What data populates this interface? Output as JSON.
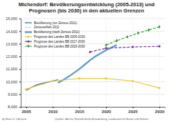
{
  "chart_data": {
    "type": "line",
    "title": "Michendorf: Bevölkerungsentwicklung (2005-2013) und Prognosen (bis 2030) in den aktuellen Grenzen",
    "annotations": [
      "by Hans G. Oberlack",
      "Quellen: Amt für Statistik Berlin-Brandenburg, Landesamt für Bauen und Verkehr"
    ],
    "xlim": [
      2004,
      2031
    ],
    "xticks": [
      2005,
      2010,
      2015,
      2020,
      2025,
      2030
    ],
    "ylim": [
      8000,
      15000
    ],
    "yticks": [
      {
        "value": 8000,
        "label": "8,000"
      },
      {
        "value": 9000,
        "label": "9,000"
      },
      {
        "value": 10000,
        "label": "10,000"
      },
      {
        "value": 11000,
        "label": "11,000"
      },
      {
        "value": 12000,
        "label": "12,000"
      },
      {
        "value": 13000,
        "label": "13,000"
      },
      {
        "value": 14000,
        "label": "14,000"
      },
      {
        "value": 15000,
        "label": "15,000"
      }
    ],
    "grid": true,
    "legend": "upper left",
    "series": [
      {
        "name": "Bevölkerung (vor Zensus 2011)",
        "color": "#2a5aa8",
        "marker": "none",
        "line_style": "solid",
        "x": [
          2005,
          2006,
          2007,
          2008,
          2009,
          2010,
          2011
        ],
        "values": [
          9300,
          9550,
          9750,
          9850,
          9950,
          10050,
          10150
        ]
      },
      {
        "name": "Zensuseffekt 2011",
        "color": "#a6a6a6",
        "marker": "none",
        "line_style": "dotted",
        "x": [
          2011,
          2011
        ],
        "values": [
          10150,
          9900
        ]
      },
      {
        "name": "Bevölkerung (nach Zensus 2011)",
        "color": "#5b9bd5",
        "marker": "none",
        "line_style": "solid",
        "x": [
          2011,
          2012,
          2013,
          2014,
          2015,
          2016,
          2017,
          2018,
          2019,
          2020,
          2021,
          2022
        ],
        "values": [
          9900,
          10150,
          10400,
          10700,
          11000,
          11350,
          11700,
          12000,
          12250,
          12500,
          12700,
          12900
        ]
      },
      {
        "name": "Prognose des Landes BB 2005-2030",
        "color": "#e8c830",
        "marker": "circle",
        "line_style": "solid",
        "x": [
          2005,
          2010,
          2015,
          2020,
          2025,
          2030
        ],
        "values": [
          9400,
          10050,
          10250,
          10250,
          10050,
          9500
        ]
      },
      {
        "name": "Prognose des Landes BB 2017-2030",
        "color": "#7030a0",
        "marker": "square",
        "line_style": "dashed",
        "x": [
          2017,
          2020,
          2025,
          2030
        ],
        "values": [
          12350,
          12650,
          12750,
          12800
        ]
      },
      {
        "name": "Prognose des Landes BB 2020-2030",
        "color": "#2e9e2e",
        "marker": "diamond",
        "line_style": "dashed",
        "x": [
          2020,
          2022,
          2024,
          2026,
          2028,
          2030
        ],
        "values": [
          12900,
          13250,
          13550,
          13850,
          14100,
          14350
        ]
      }
    ]
  }
}
